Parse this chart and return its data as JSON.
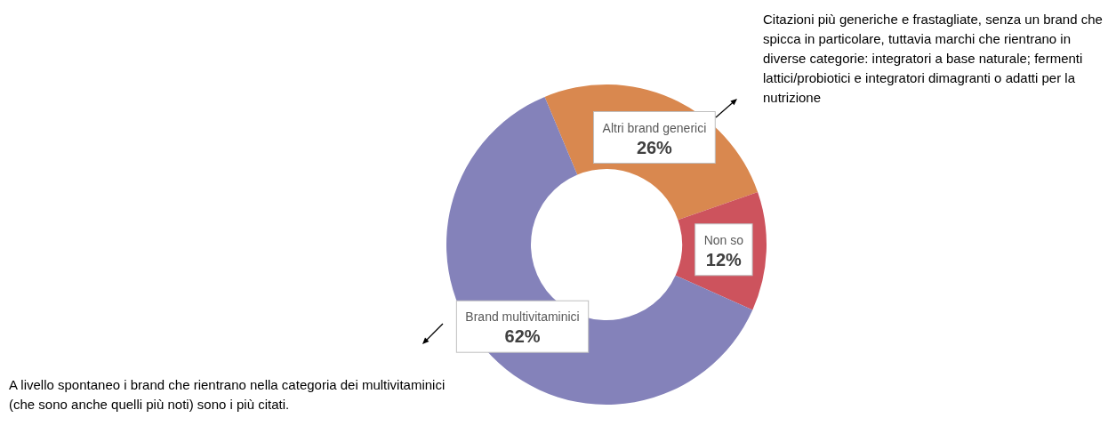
{
  "chart_data": {
    "type": "donut",
    "categories": [
      "Altri brand generici",
      "Non so",
      "Brand multivitaminici"
    ],
    "values": [
      26,
      12,
      62
    ],
    "colors": [
      "#d9884f",
      "#cd535d",
      "#8482ba"
    ],
    "value_labels": [
      "26%",
      "12%",
      "62%"
    ],
    "annotations": [
      "Citazioni più generiche e frastagliate, senza un brand che spicca in particolare, tuttavia marchi che rientrano in diverse categorie: integratori a base naturale; fermenti lattici/probiotici e integratori dimagranti o adatti per la nutrizione",
      "A livello spontaneo i brand che rientrano nella categoria dei multivitaminici (che sono anche quelli più noti) sono i più citati."
    ],
    "legend": false
  }
}
